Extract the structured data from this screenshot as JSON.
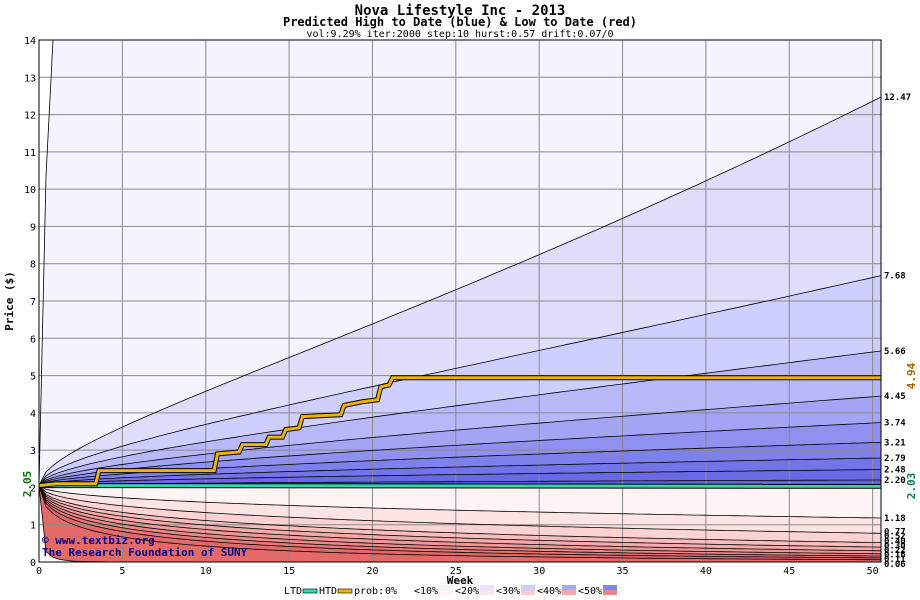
{
  "chart_data": {
    "type": "area",
    "title": "Nova Lifestyle Inc - 2013",
    "subtitle": "Predicted High to Date (blue) &  Low to Date (red)",
    "params": "vol:9.29% iter:2000 step:10 hurst:0.57 drift:0.07/0",
    "xlabel": "Week",
    "ylabel": "Price ($)",
    "xlim": [
      0,
      50.5
    ],
    "ylim": [
      0,
      14
    ],
    "x_ticks": [
      0,
      5,
      10,
      15,
      20,
      25,
      30,
      35,
      40,
      45,
      50
    ],
    "y_ticks": [
      0,
      1,
      2,
      3,
      4,
      5,
      6,
      7,
      8,
      9,
      10,
      11,
      12,
      13,
      14
    ],
    "grid": true,
    "start_price": 2.05,
    "start_label": "2.05",
    "htd_end_label": "4.94",
    "ltd_end_label": "2.03",
    "high_band_end_values": [
      12.47,
      7.68,
      5.66,
      4.45,
      3.74,
      3.21,
      2.79,
      2.48,
      2.2
    ],
    "high_band_end_labels": [
      "12.47",
      "7.68",
      "5.66",
      "4.45",
      "3.74",
      "3.21",
      "2.79",
      "2.48",
      "2.20"
    ],
    "low_band_end_values": [
      1.18,
      0.77,
      0.52,
      0.4,
      0.3,
      0.22,
      0.16,
      0.11,
      0.06
    ],
    "low_band_end_labels": [
      "1.18",
      "0.77",
      "0.52",
      "0.40",
      "0.30",
      "0.22",
      "0.16",
      "0.11",
      "0.06"
    ],
    "high_band_colors": [
      "#f4f4ff",
      "#dedefb",
      "#ceceff",
      "#b8b8f8",
      "#a4a4f4",
      "#9090f0",
      "#8080ec",
      "#7474ea",
      "#6a6ae6",
      "#6262e4"
    ],
    "low_band_colors": [
      "#fff4f4",
      "#fde4e4",
      "#fcd2d2",
      "#f8bebe",
      "#f4aaaa",
      "#f09898",
      "#ec8888",
      "#e87878",
      "#e46a6a"
    ],
    "htd_path": [
      [
        0,
        2.05
      ],
      [
        1,
        2.1
      ],
      [
        3.4,
        2.1
      ],
      [
        3.6,
        2.45
      ],
      [
        10.5,
        2.45
      ],
      [
        10.7,
        2.9
      ],
      [
        12,
        2.95
      ],
      [
        12.2,
        3.15
      ],
      [
        13.6,
        3.15
      ],
      [
        13.8,
        3.35
      ],
      [
        14.6,
        3.35
      ],
      [
        14.8,
        3.55
      ],
      [
        15.6,
        3.6
      ],
      [
        15.8,
        3.9
      ],
      [
        18.1,
        3.95
      ],
      [
        18.3,
        4.2
      ],
      [
        19.4,
        4.3
      ],
      [
        20.3,
        4.35
      ],
      [
        20.5,
        4.7
      ],
      [
        21,
        4.75
      ],
      [
        21.2,
        4.94
      ],
      [
        50.5,
        4.94
      ]
    ],
    "ltd_path": [
      [
        0,
        2.05
      ],
      [
        50.5,
        2.03
      ]
    ],
    "htd_color": "#f0b400",
    "ltd_color": "#30d8b0"
  },
  "copyright": {
    "line1": "© www.textbiz.org",
    "line2": "The Research Foundation of SUNY"
  },
  "legend": {
    "ltd": "LTD",
    "htd": "HTD",
    "prob_prefix": "prob:",
    "items": [
      {
        "label": "0%",
        "color": "#ffffff"
      },
      {
        "label": "<10%",
        "color": "#f4f4ff"
      },
      {
        "label": "<20%",
        "color": "#e4e4fc"
      },
      {
        "label": "<30%",
        "color": "#ccccff"
      },
      {
        "label": "<40%",
        "color": "#a8a8f6"
      },
      {
        "label": "<50%",
        "color": "#8484ee"
      }
    ],
    "item_red_colors": [
      "#ffffff",
      "#fff4f4",
      "#fde4e4",
      "#fccccc",
      "#f6a8a8",
      "#ee8484"
    ]
  }
}
